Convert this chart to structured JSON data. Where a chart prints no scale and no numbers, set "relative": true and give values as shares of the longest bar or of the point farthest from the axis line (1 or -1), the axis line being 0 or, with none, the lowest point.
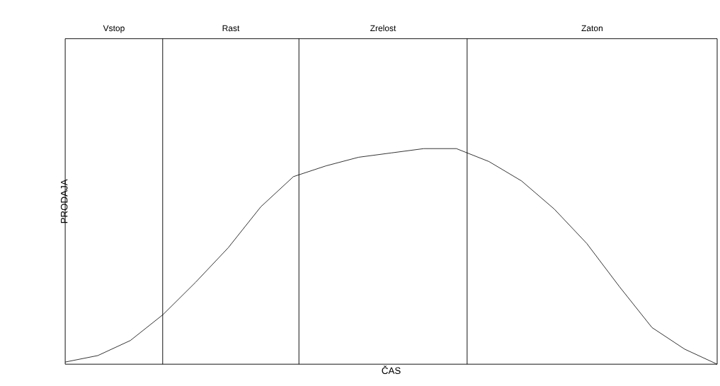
{
  "chart_data": {
    "type": "line",
    "relative": true,
    "xlabel": "ČAS",
    "ylabel": "PRODAJA",
    "categories": [
      null,
      null,
      null,
      null,
      null,
      null,
      null,
      null,
      null,
      null,
      null,
      null,
      null,
      null,
      null,
      null,
      null,
      null,
      null,
      null,
      null
    ],
    "series": [
      {
        "color": "#000000",
        "values": [
          0.01,
          0.04,
          0.11,
          0.23,
          0.38,
          0.54,
          0.73,
          0.87,
          0.92,
          0.96,
          0.98,
          1.0,
          1.0,
          0.94,
          0.85,
          0.72,
          0.56,
          0.36,
          0.17,
          0.07,
          0.0
        ]
      }
    ],
    "annotations": [
      "Vstop",
      "Rast",
      "Zrelost",
      "Zaton"
    ],
    "marker": "none",
    "line_style": "solid"
  }
}
